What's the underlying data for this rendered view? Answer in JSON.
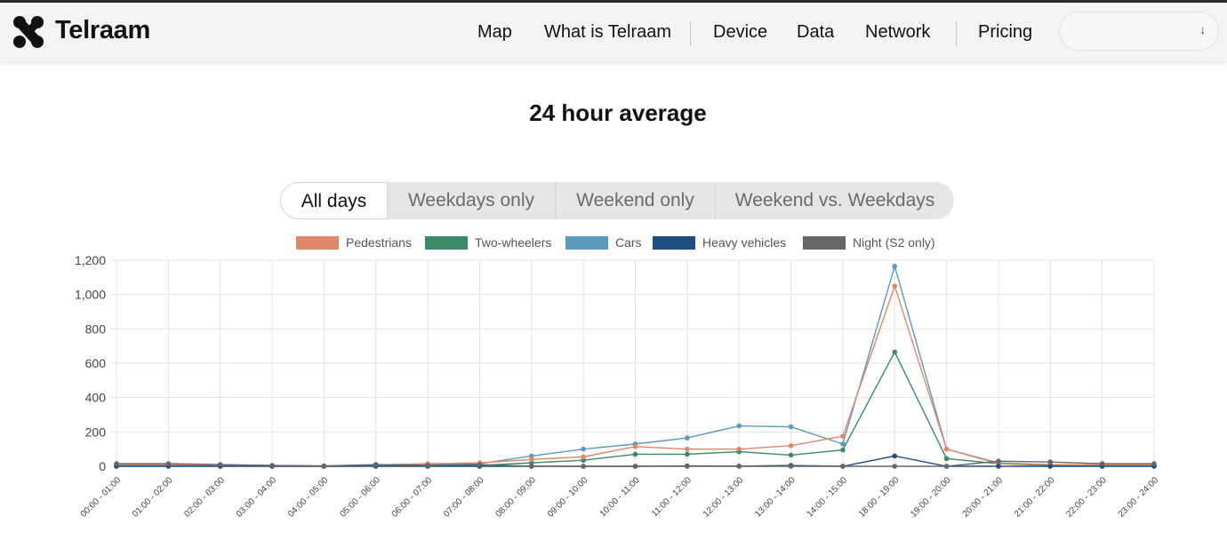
{
  "header": {
    "brand": "Telraam",
    "nav": [
      {
        "label": "Map"
      },
      {
        "label": "What is Telraam"
      },
      {
        "label": "Device"
      },
      {
        "label": "Data"
      },
      {
        "label": "Network"
      },
      {
        "label": "Pricing"
      }
    ],
    "language_select": {
      "value": "",
      "arrow": "↓"
    }
  },
  "page": {
    "title": "24 hour average"
  },
  "tabs": [
    {
      "label": "All days",
      "active": true
    },
    {
      "label": "Weekdays only",
      "active": false
    },
    {
      "label": "Weekend only",
      "active": false
    },
    {
      "label": "Weekend vs. Weekdays",
      "active": false
    }
  ],
  "colors": {
    "pedestrians": "#e0876a",
    "two_wheelers": "#3a8a66",
    "cars": "#5b9ab9",
    "heavy": "#1f4e80",
    "night": "#666666"
  },
  "chart_data": {
    "type": "line",
    "title": "",
    "legend_position": "top",
    "grid": true,
    "ylim": [
      0,
      1200
    ],
    "yticks": [
      "0",
      "200",
      "400",
      "600",
      "800",
      "1,000",
      "1,200"
    ],
    "ytick_values": [
      0,
      200,
      400,
      600,
      800,
      1000,
      1200
    ],
    "categories": [
      "00:00 - 01:00",
      "01:00 - 02:00",
      "02:00 - 03:00",
      "03:00 - 04:00",
      "04:00 - 05:00",
      "05:00 - 06:00",
      "06:00 - 07:00",
      "07:00 - 08:00",
      "08:00 - 09:00",
      "09:00 - 10:00",
      "10:00 - 11:00",
      "11:00 - 12:00",
      "12:00 - 13:00",
      "13:00 - 14:00",
      "14:00 - 15:00",
      "18:00 - 19:00",
      "19:00 - 20:00",
      "20:00 - 21:00",
      "21:00 - 22:00",
      "22:00 - 23:00",
      "23:00 - 24:00"
    ],
    "series": [
      {
        "name": "Cars",
        "color": "#5b9ab9",
        "values": [
          5,
          5,
          5,
          2,
          1,
          5,
          10,
          15,
          60,
          100,
          130,
          165,
          235,
          230,
          130,
          1165,
          100,
          20,
          10,
          8,
          8
        ]
      },
      {
        "name": "Two-wheelers",
        "color": "#3a8a66",
        "values": [
          2,
          2,
          2,
          1,
          0,
          2,
          5,
          5,
          20,
          35,
          70,
          70,
          85,
          65,
          95,
          665,
          45,
          15,
          5,
          3,
          3
        ]
      },
      {
        "name": "Pedestrians",
        "color": "#e0876a",
        "values": [
          10,
          10,
          8,
          5,
          2,
          8,
          15,
          20,
          40,
          55,
          115,
          100,
          100,
          120,
          175,
          1050,
          100,
          15,
          10,
          8,
          8
        ]
      },
      {
        "name": "Heavy vehicles",
        "color": "#1f4e80",
        "values": [
          0,
          0,
          0,
          0,
          0,
          0,
          0,
          0,
          0,
          0,
          0,
          2,
          1,
          5,
          0,
          60,
          0,
          0,
          0,
          0,
          0
        ]
      },
      {
        "name": "Night (S2 only)",
        "color": "#666666",
        "values": [
          15,
          15,
          10,
          5,
          2,
          10,
          5,
          10,
          0,
          0,
          0,
          0,
          0,
          0,
          0,
          0,
          0,
          30,
          25,
          15,
          15
        ]
      }
    ],
    "legend": [
      {
        "name": "Pedestrians",
        "color": "#e0876a"
      },
      {
        "name": "Two-wheelers",
        "color": "#3a8a66"
      },
      {
        "name": "Cars",
        "color": "#5b9ab9"
      },
      {
        "name": "Heavy vehicles",
        "color": "#1f4e80"
      },
      {
        "name": "Night (S2 only)",
        "color": "#666666"
      }
    ]
  }
}
